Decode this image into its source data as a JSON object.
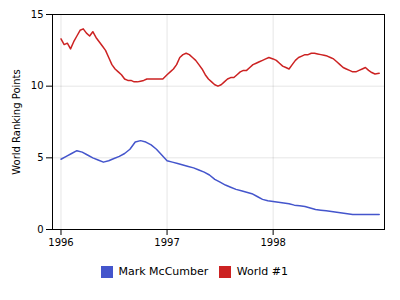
{
  "chart_data": {
    "type": "line",
    "ylabel": "World Ranking Points",
    "xlim": [
      1995.92,
      1999.05
    ],
    "ylim": [
      0,
      15
    ],
    "xticks": [
      1996,
      1997,
      1998
    ],
    "yticks": [
      0,
      5,
      10,
      15
    ],
    "grid": true,
    "legend": "bottom",
    "series": [
      {
        "name": "Mark McCumber",
        "color": "#4455cc",
        "x": [
          1996.0,
          1996.05,
          1996.1,
          1996.15,
          1996.2,
          1996.25,
          1996.3,
          1996.35,
          1996.4,
          1996.45,
          1996.5,
          1996.55,
          1996.6,
          1996.65,
          1996.7,
          1996.75,
          1996.8,
          1996.85,
          1996.9,
          1996.95,
          1997.0,
          1997.05,
          1997.1,
          1997.15,
          1997.2,
          1997.25,
          1997.3,
          1997.35,
          1997.4,
          1997.45,
          1997.5,
          1997.55,
          1997.6,
          1997.65,
          1997.7,
          1997.75,
          1997.8,
          1997.85,
          1997.9,
          1997.95,
          1998.0,
          1998.05,
          1998.1,
          1998.15,
          1998.2,
          1998.25,
          1998.3,
          1998.35,
          1998.4,
          1998.45,
          1998.5,
          1998.55,
          1998.6,
          1998.65,
          1998.7,
          1998.75,
          1998.8,
          1998.85,
          1998.9,
          1998.95,
          1999.0
        ],
        "values": [
          4.9,
          5.1,
          5.3,
          5.5,
          5.4,
          5.2,
          5.0,
          4.85,
          4.7,
          4.8,
          4.95,
          5.1,
          5.3,
          5.6,
          6.1,
          6.2,
          6.1,
          5.9,
          5.6,
          5.2,
          4.8,
          4.7,
          4.6,
          4.5,
          4.4,
          4.3,
          4.15,
          4.0,
          3.8,
          3.5,
          3.3,
          3.1,
          2.95,
          2.8,
          2.7,
          2.6,
          2.5,
          2.3,
          2.1,
          2.0,
          1.95,
          1.9,
          1.85,
          1.8,
          1.7,
          1.65,
          1.6,
          1.5,
          1.4,
          1.35,
          1.3,
          1.25,
          1.2,
          1.15,
          1.1,
          1.05,
          1.05,
          1.05,
          1.05,
          1.05,
          1.05
        ]
      },
      {
        "name": "World #1",
        "color": "#cc2222",
        "x": [
          1996.0,
          1996.03,
          1996.06,
          1996.09,
          1996.12,
          1996.15,
          1996.18,
          1996.21,
          1996.24,
          1996.27,
          1996.3,
          1996.33,
          1996.36,
          1996.39,
          1996.42,
          1996.45,
          1996.48,
          1996.51,
          1996.54,
          1996.57,
          1996.6,
          1996.63,
          1996.66,
          1996.69,
          1996.72,
          1996.75,
          1996.78,
          1996.81,
          1996.84,
          1996.87,
          1996.9,
          1996.93,
          1996.96,
          1997.0,
          1997.03,
          1997.06,
          1997.09,
          1997.12,
          1997.15,
          1997.18,
          1997.21,
          1997.24,
          1997.27,
          1997.3,
          1997.33,
          1997.36,
          1997.39,
          1997.42,
          1997.45,
          1997.48,
          1997.51,
          1997.54,
          1997.57,
          1997.6,
          1997.63,
          1997.66,
          1997.69,
          1997.72,
          1997.75,
          1997.78,
          1997.81,
          1997.84,
          1997.87,
          1997.9,
          1997.93,
          1997.96,
          1998.0,
          1998.03,
          1998.06,
          1998.09,
          1998.12,
          1998.15,
          1998.18,
          1998.21,
          1998.24,
          1998.27,
          1998.3,
          1998.33,
          1998.36,
          1998.39,
          1998.42,
          1998.45,
          1998.48,
          1998.51,
          1998.54,
          1998.57,
          1998.6,
          1998.63,
          1998.66,
          1998.69,
          1998.72,
          1998.75,
          1998.78,
          1998.81,
          1998.84,
          1998.87,
          1998.9,
          1998.93,
          1998.96,
          1999.0
        ],
        "values": [
          13.3,
          12.9,
          13.0,
          12.6,
          13.1,
          13.5,
          13.9,
          14.0,
          13.7,
          13.5,
          13.8,
          13.4,
          13.1,
          12.8,
          12.5,
          12.0,
          11.5,
          11.2,
          11.0,
          10.8,
          10.5,
          10.4,
          10.4,
          10.3,
          10.3,
          10.35,
          10.4,
          10.5,
          10.5,
          10.5,
          10.5,
          10.5,
          10.5,
          10.8,
          11.0,
          11.2,
          11.5,
          12.0,
          12.2,
          12.3,
          12.2,
          12.0,
          11.8,
          11.5,
          11.2,
          10.8,
          10.5,
          10.3,
          10.1,
          10.0,
          10.1,
          10.3,
          10.5,
          10.6,
          10.6,
          10.8,
          11.0,
          11.1,
          11.1,
          11.3,
          11.5,
          11.6,
          11.7,
          11.8,
          11.9,
          12.0,
          11.9,
          11.8,
          11.6,
          11.4,
          11.3,
          11.2,
          11.5,
          11.8,
          12.0,
          12.1,
          12.2,
          12.2,
          12.3,
          12.3,
          12.25,
          12.2,
          12.15,
          12.1,
          12.0,
          11.9,
          11.7,
          11.5,
          11.3,
          11.2,
          11.1,
          11.0,
          11.0,
          11.1,
          11.2,
          11.3,
          11.1,
          10.95,
          10.85,
          10.9
        ]
      }
    ]
  }
}
